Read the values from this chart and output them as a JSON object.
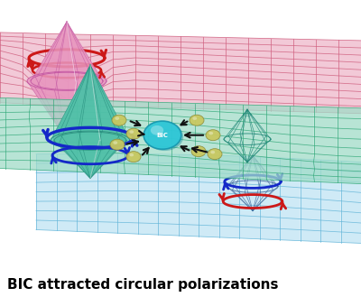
{
  "caption": "BIC attracted circular polarizations",
  "caption_fontsize": 11,
  "fig_width": 4.0,
  "fig_height": 3.29,
  "dpi": 100,
  "bg_color": "#ffffff",
  "top_surface": {
    "color": "#f0c0d0",
    "alpha": 0.85,
    "grid_color": "#d06080",
    "grid_alpha": 0.9,
    "grid_lw": 0.55
  },
  "mid_surface": {
    "color": "#a0dcc8",
    "alpha": 0.75,
    "grid_color": "#30a878",
    "grid_alpha": 0.85,
    "grid_lw": 0.55
  },
  "bot_surface": {
    "color": "#c0e4f4",
    "alpha": 0.75,
    "grid_color": "#60b4d8",
    "grid_alpha": 0.85,
    "grid_lw": 0.55
  },
  "red_ring_color": "#cc1818",
  "blue_ring_color": "#1428c8",
  "teal_cone_color": "#50c0a8",
  "teal_cone_dark": "#208878",
  "pink_cone_color": "#e898c0",
  "pink_cone_dark": "#c050a0",
  "gray_cone_color": "#7898b8",
  "gray_cone_dark": "#4870a0",
  "bic_sphere_color": "#30c8d8",
  "bic_sphere_edge": "#1898b0",
  "ball_color": "#c8c860",
  "ball_edge": "#909040",
  "arrow_color": "#111111"
}
